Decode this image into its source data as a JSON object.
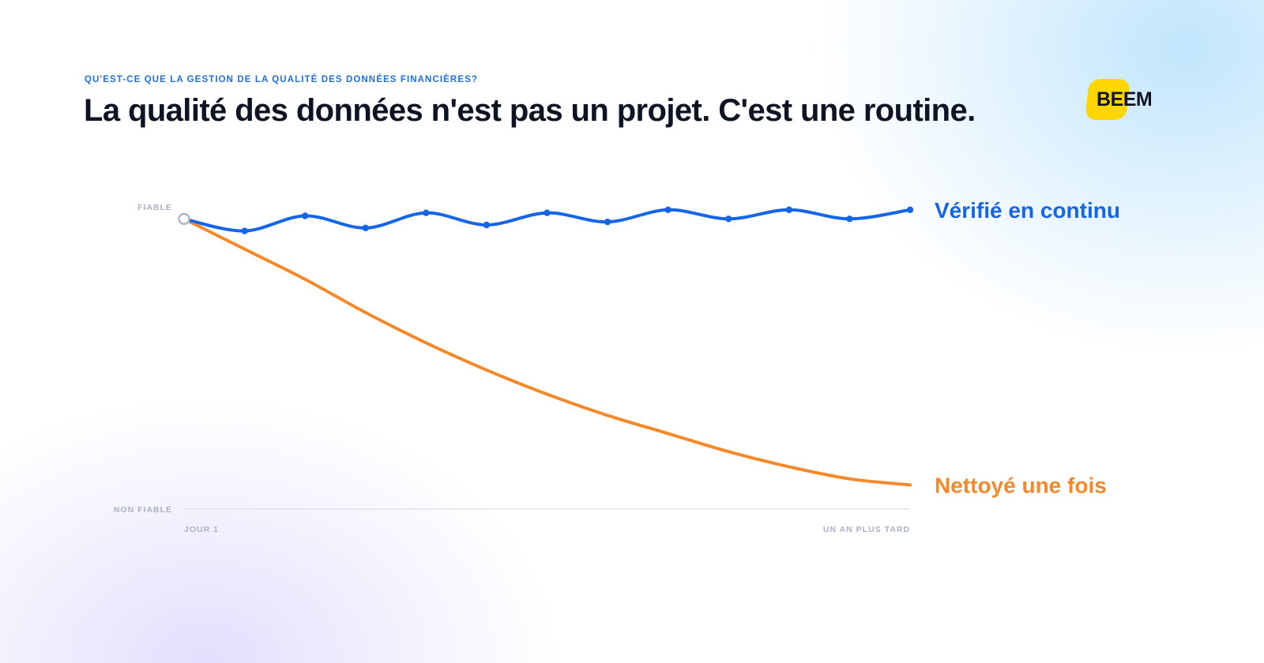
{
  "header": {
    "eyebrow": "QU'EST-CE QUE LA GESTION DE LA QUALITÉ DES DONNÉES FINANCIÈRES?",
    "title": "La qualité des données n'est pas un projet. C'est une routine."
  },
  "brand": {
    "logo_text": "BEEM",
    "accent": "#ffd600"
  },
  "chart_data": {
    "type": "line",
    "title": "",
    "xlabel": "",
    "ylabel": "",
    "x_range": [
      0,
      12
    ],
    "ylim": [
      0,
      1
    ],
    "x_tick_labels": [
      {
        "x": 0,
        "label": "JOUR 1"
      },
      {
        "x": 12,
        "label": "UN AN PLUS TARD"
      }
    ],
    "y_tick_labels": [
      {
        "y": 0,
        "label": "NON FIABLE"
      },
      {
        "y": 1,
        "label": "FIABLE"
      }
    ],
    "grid": false,
    "start_point": {
      "x": 0,
      "y": 0.96
    },
    "series": [
      {
        "name": "Vérifié en continu",
        "color": "#1565e8",
        "smooth": true,
        "markers": true,
        "x": [
          0,
          1,
          2,
          3,
          4,
          5,
          6,
          7,
          8,
          9,
          10,
          11,
          12
        ],
        "values": [
          0.96,
          0.92,
          0.97,
          0.93,
          0.98,
          0.94,
          0.98,
          0.95,
          0.99,
          0.96,
          0.99,
          0.96,
          0.99
        ]
      },
      {
        "name": "Nettoyé une fois",
        "color": "#f5892a",
        "smooth": true,
        "markers": false,
        "x": [
          0,
          1,
          2,
          3,
          4,
          5,
          6,
          7,
          8,
          9,
          10,
          11,
          12
        ],
        "values": [
          0.96,
          0.86,
          0.76,
          0.65,
          0.55,
          0.46,
          0.38,
          0.31,
          0.25,
          0.19,
          0.14,
          0.1,
          0.08
        ]
      }
    ]
  }
}
